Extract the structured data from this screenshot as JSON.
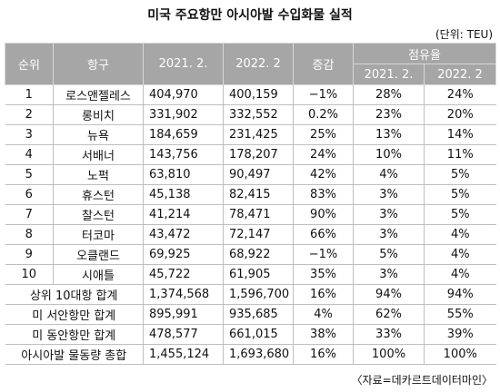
{
  "title": "미국 주요항만 아시아발 수입화물 실적",
  "unit": "(단위: TEU)",
  "header": {
    "rank": "순위",
    "port": "항구",
    "y2021": "2021. 2.",
    "y2022": "2022. 2",
    "change": "증감",
    "share": "점유율",
    "share2021": "2021. 2.",
    "share2022": "2022. 2"
  },
  "rows": [
    [
      "1",
      "로스앤젤레스",
      "404,970",
      "400,159",
      "−1%",
      "28%",
      "24%"
    ],
    [
      "2",
      "롱비치",
      "331,902",
      "332,552",
      "0.2%",
      "23%",
      "20%"
    ],
    [
      "3",
      "뉴욕",
      "184,659",
      "231,425",
      "25%",
      "13%",
      "14%"
    ],
    [
      "4",
      "서배너",
      "143,756",
      "178,207",
      "24%",
      "10%",
      "11%"
    ],
    [
      "5",
      "노퍽",
      "63,810",
      "90,497",
      "42%",
      "4%",
      "5%"
    ],
    [
      "6",
      "휴스턴",
      "45,138",
      "82,415",
      "83%",
      "3%",
      "5%"
    ],
    [
      "7",
      "찰스턴",
      "41,214",
      "78,471",
      "90%",
      "3%",
      "5%"
    ],
    [
      "8",
      "터코마",
      "43,472",
      "72,147",
      "66%",
      "3%",
      "4%"
    ],
    [
      "9",
      "오클랜드",
      "69,925",
      "68,922",
      "−1%",
      "5%",
      "4%"
    ],
    [
      "10",
      "시애틀",
      "45,722",
      "61,905",
      "35%",
      "3%",
      "4%"
    ]
  ],
  "totals": [
    [
      "상위 10대항 합계",
      "1,374,568",
      "1,596,700",
      "16%",
      "94%",
      "94%"
    ],
    [
      "미 서안항만 합계",
      "895,991",
      "935,685",
      "4%",
      "62%",
      "55%"
    ],
    [
      "미 동안항만 합계",
      "478,577",
      "661,015",
      "38%",
      "33%",
      "39%"
    ],
    [
      "아시아발 물동량 총합",
      "1,455,124",
      "1,693,680",
      "16%",
      "100%",
      "100%"
    ]
  ],
  "source": "〈자료=데카르트데이터마인〉"
}
